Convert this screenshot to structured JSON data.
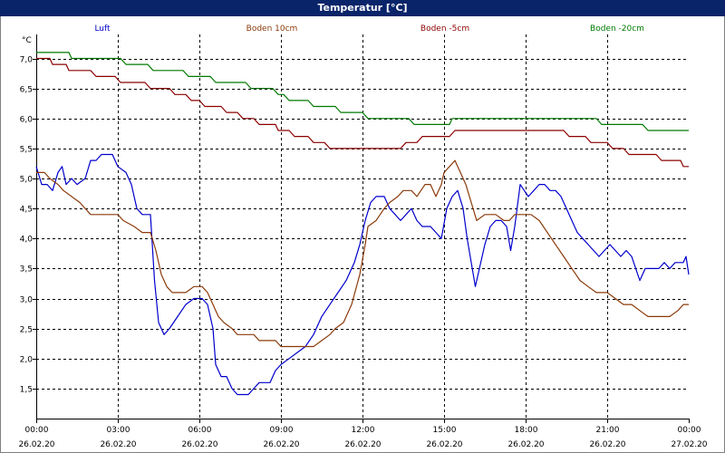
{
  "window": {
    "title": "Temperatur [°C]"
  },
  "chart_data": {
    "type": "line",
    "title": "Temperatur [°C]",
    "ylabel": "°C",
    "ylim": [
      1.0,
      7.4
    ],
    "xlim_hours": [
      0,
      24
    ],
    "grid": true,
    "legend_placement": "top",
    "yticks": [
      {
        "v": 1.5,
        "label": "1,5"
      },
      {
        "v": 2.0,
        "label": "2,0"
      },
      {
        "v": 2.5,
        "label": "2,5"
      },
      {
        "v": 3.0,
        "label": "3,0"
      },
      {
        "v": 3.5,
        "label": "3,5"
      },
      {
        "v": 4.0,
        "label": "4,0"
      },
      {
        "v": 4.5,
        "label": "4,5"
      },
      {
        "v": 5.0,
        "label": "5,0"
      },
      {
        "v": 5.5,
        "label": "5,5"
      },
      {
        "v": 6.0,
        "label": "6,0"
      },
      {
        "v": 6.5,
        "label": "6,5"
      },
      {
        "v": 7.0,
        "label": "7,0"
      }
    ],
    "xticks": [
      {
        "h": 0,
        "time": "00:00",
        "date": "26.02.20"
      },
      {
        "h": 3,
        "time": "03:00",
        "date": "26.02.20"
      },
      {
        "h": 6,
        "time": "06:00",
        "date": "26.02.20"
      },
      {
        "h": 9,
        "time": "09:00",
        "date": "26.02.20"
      },
      {
        "h": 12,
        "time": "12:00",
        "date": "26.02.20"
      },
      {
        "h": 15,
        "time": "15:00",
        "date": "26.02.20"
      },
      {
        "h": 18,
        "time": "18:00",
        "date": "26.02.20"
      },
      {
        "h": 21,
        "time": "21:00",
        "date": "26.02.20"
      },
      {
        "h": 24,
        "time": "00:00",
        "date": "27.02.20"
      }
    ],
    "series": [
      {
        "name": "Luft",
        "color": "#0000cc",
        "points": [
          [
            0.0,
            5.2
          ],
          [
            0.2,
            4.9
          ],
          [
            0.4,
            4.9
          ],
          [
            0.6,
            4.8
          ],
          [
            0.8,
            5.1
          ],
          [
            0.95,
            5.2
          ],
          [
            1.1,
            4.9
          ],
          [
            1.3,
            5.0
          ],
          [
            1.5,
            4.9
          ],
          [
            1.8,
            5.0
          ],
          [
            2.0,
            5.3
          ],
          [
            2.2,
            5.3
          ],
          [
            2.4,
            5.4
          ],
          [
            2.8,
            5.4
          ],
          [
            3.0,
            5.2
          ],
          [
            3.3,
            5.1
          ],
          [
            3.5,
            4.9
          ],
          [
            3.7,
            4.5
          ],
          [
            3.9,
            4.4
          ],
          [
            4.2,
            4.4
          ],
          [
            4.35,
            3.3
          ],
          [
            4.5,
            2.6
          ],
          [
            4.7,
            2.4
          ],
          [
            4.9,
            2.5
          ],
          [
            5.2,
            2.7
          ],
          [
            5.5,
            2.9
          ],
          [
            5.8,
            3.0
          ],
          [
            6.1,
            3.0
          ],
          [
            6.3,
            2.9
          ],
          [
            6.5,
            2.5
          ],
          [
            6.6,
            1.9
          ],
          [
            6.8,
            1.7
          ],
          [
            7.0,
            1.7
          ],
          [
            7.2,
            1.5
          ],
          [
            7.4,
            1.4
          ],
          [
            7.8,
            1.4
          ],
          [
            8.0,
            1.5
          ],
          [
            8.2,
            1.6
          ],
          [
            8.6,
            1.6
          ],
          [
            8.8,
            1.8
          ],
          [
            9.0,
            1.9
          ],
          [
            9.3,
            2.0
          ],
          [
            9.6,
            2.1
          ],
          [
            9.9,
            2.2
          ],
          [
            10.2,
            2.4
          ],
          [
            10.5,
            2.7
          ],
          [
            10.8,
            2.9
          ],
          [
            11.1,
            3.1
          ],
          [
            11.4,
            3.3
          ],
          [
            11.7,
            3.6
          ],
          [
            11.9,
            3.9
          ],
          [
            12.1,
            4.3
          ],
          [
            12.3,
            4.6
          ],
          [
            12.5,
            4.7
          ],
          [
            12.8,
            4.7
          ],
          [
            13.0,
            4.5
          ],
          [
            13.2,
            4.4
          ],
          [
            13.4,
            4.3
          ],
          [
            13.6,
            4.4
          ],
          [
            13.8,
            4.5
          ],
          [
            14.0,
            4.3
          ],
          [
            14.2,
            4.2
          ],
          [
            14.5,
            4.2
          ],
          [
            14.7,
            4.1
          ],
          [
            14.9,
            4.0
          ],
          [
            15.1,
            4.5
          ],
          [
            15.3,
            4.7
          ],
          [
            15.5,
            4.8
          ],
          [
            15.7,
            4.5
          ],
          [
            15.85,
            4.0
          ],
          [
            16.0,
            3.6
          ],
          [
            16.15,
            3.2
          ],
          [
            16.3,
            3.5
          ],
          [
            16.5,
            3.9
          ],
          [
            16.7,
            4.2
          ],
          [
            16.9,
            4.3
          ],
          [
            17.1,
            4.3
          ],
          [
            17.3,
            4.2
          ],
          [
            17.45,
            3.8
          ],
          [
            17.6,
            4.2
          ],
          [
            17.8,
            4.9
          ],
          [
            17.95,
            4.8
          ],
          [
            18.1,
            4.7
          ],
          [
            18.3,
            4.8
          ],
          [
            18.5,
            4.9
          ],
          [
            18.7,
            4.9
          ],
          [
            18.9,
            4.8
          ],
          [
            19.1,
            4.8
          ],
          [
            19.3,
            4.7
          ],
          [
            19.5,
            4.5
          ],
          [
            19.7,
            4.3
          ],
          [
            19.9,
            4.1
          ],
          [
            20.1,
            4.0
          ],
          [
            20.3,
            3.9
          ],
          [
            20.5,
            3.8
          ],
          [
            20.7,
            3.7
          ],
          [
            20.9,
            3.8
          ],
          [
            21.1,
            3.9
          ],
          [
            21.3,
            3.8
          ],
          [
            21.5,
            3.7
          ],
          [
            21.7,
            3.8
          ],
          [
            21.9,
            3.7
          ],
          [
            22.05,
            3.5
          ],
          [
            22.2,
            3.3
          ],
          [
            22.4,
            3.5
          ],
          [
            22.6,
            3.5
          ],
          [
            22.9,
            3.5
          ],
          [
            23.1,
            3.6
          ],
          [
            23.3,
            3.5
          ],
          [
            23.5,
            3.6
          ],
          [
            23.8,
            3.6
          ],
          [
            23.9,
            3.7
          ],
          [
            24.0,
            3.4
          ]
        ]
      },
      {
        "name": "Boden 10cm",
        "color": "#8b3a0a",
        "points": [
          [
            0.0,
            5.1
          ],
          [
            0.3,
            5.1
          ],
          [
            0.5,
            5.0
          ],
          [
            0.8,
            4.9
          ],
          [
            1.0,
            4.8
          ],
          [
            1.3,
            4.7
          ],
          [
            1.6,
            4.6
          ],
          [
            2.0,
            4.4
          ],
          [
            2.5,
            4.4
          ],
          [
            3.0,
            4.4
          ],
          [
            3.2,
            4.3
          ],
          [
            3.6,
            4.2
          ],
          [
            3.9,
            4.1
          ],
          [
            4.2,
            4.1
          ],
          [
            4.4,
            3.8
          ],
          [
            4.6,
            3.4
          ],
          [
            4.8,
            3.2
          ],
          [
            5.0,
            3.1
          ],
          [
            5.5,
            3.1
          ],
          [
            5.8,
            3.2
          ],
          [
            6.1,
            3.2
          ],
          [
            6.3,
            3.1
          ],
          [
            6.5,
            2.9
          ],
          [
            6.7,
            2.7
          ],
          [
            6.9,
            2.6
          ],
          [
            7.2,
            2.5
          ],
          [
            7.4,
            2.4
          ],
          [
            8.0,
            2.4
          ],
          [
            8.2,
            2.3
          ],
          [
            8.8,
            2.3
          ],
          [
            9.0,
            2.2
          ],
          [
            9.6,
            2.2
          ],
          [
            9.8,
            2.2
          ],
          [
            10.2,
            2.2
          ],
          [
            10.5,
            2.3
          ],
          [
            10.8,
            2.4
          ],
          [
            11.0,
            2.5
          ],
          [
            11.3,
            2.6
          ],
          [
            11.6,
            2.9
          ],
          [
            11.9,
            3.4
          ],
          [
            12.1,
            3.9
          ],
          [
            12.2,
            4.2
          ],
          [
            12.5,
            4.3
          ],
          [
            12.8,
            4.5
          ],
          [
            13.0,
            4.6
          ],
          [
            13.3,
            4.7
          ],
          [
            13.5,
            4.8
          ],
          [
            13.8,
            4.8
          ],
          [
            14.0,
            4.7
          ],
          [
            14.3,
            4.9
          ],
          [
            14.5,
            4.9
          ],
          [
            14.7,
            4.7
          ],
          [
            14.9,
            4.9
          ],
          [
            15.0,
            5.1
          ],
          [
            15.2,
            5.2
          ],
          [
            15.4,
            5.3
          ],
          [
            15.6,
            5.1
          ],
          [
            15.8,
            4.9
          ],
          [
            16.0,
            4.6
          ],
          [
            16.2,
            4.3
          ],
          [
            16.5,
            4.4
          ],
          [
            16.9,
            4.4
          ],
          [
            17.2,
            4.3
          ],
          [
            17.4,
            4.3
          ],
          [
            17.6,
            4.4
          ],
          [
            18.2,
            4.4
          ],
          [
            18.5,
            4.3
          ],
          [
            18.8,
            4.1
          ],
          [
            19.1,
            3.9
          ],
          [
            19.4,
            3.7
          ],
          [
            19.7,
            3.5
          ],
          [
            20.0,
            3.3
          ],
          [
            20.3,
            3.2
          ],
          [
            20.6,
            3.1
          ],
          [
            21.0,
            3.1
          ],
          [
            21.3,
            3.0
          ],
          [
            21.6,
            2.9
          ],
          [
            21.9,
            2.9
          ],
          [
            22.2,
            2.8
          ],
          [
            22.5,
            2.7
          ],
          [
            23.0,
            2.7
          ],
          [
            23.3,
            2.7
          ],
          [
            23.6,
            2.8
          ],
          [
            23.8,
            2.9
          ],
          [
            24.0,
            2.9
          ]
        ]
      },
      {
        "name": "Boden -5cm",
        "color": "#8b0000",
        "points": [
          [
            0.0,
            7.0
          ],
          [
            0.5,
            7.0
          ],
          [
            0.6,
            6.9
          ],
          [
            1.1,
            6.9
          ],
          [
            1.2,
            6.8
          ],
          [
            2.0,
            6.8
          ],
          [
            2.2,
            6.7
          ],
          [
            2.9,
            6.7
          ],
          [
            3.1,
            6.6
          ],
          [
            4.0,
            6.6
          ],
          [
            4.2,
            6.5
          ],
          [
            4.9,
            6.5
          ],
          [
            5.1,
            6.4
          ],
          [
            5.5,
            6.4
          ],
          [
            5.7,
            6.3
          ],
          [
            6.0,
            6.3
          ],
          [
            6.2,
            6.2
          ],
          [
            6.8,
            6.2
          ],
          [
            7.0,
            6.1
          ],
          [
            7.4,
            6.1
          ],
          [
            7.6,
            6.0
          ],
          [
            8.0,
            6.0
          ],
          [
            8.2,
            5.9
          ],
          [
            8.8,
            5.9
          ],
          [
            8.9,
            5.8
          ],
          [
            9.3,
            5.8
          ],
          [
            9.5,
            5.7
          ],
          [
            10.0,
            5.7
          ],
          [
            10.2,
            5.6
          ],
          [
            10.6,
            5.6
          ],
          [
            10.8,
            5.5
          ],
          [
            13.4,
            5.5
          ],
          [
            13.6,
            5.6
          ],
          [
            14.0,
            5.6
          ],
          [
            14.2,
            5.7
          ],
          [
            15.2,
            5.7
          ],
          [
            15.4,
            5.8
          ],
          [
            19.4,
            5.8
          ],
          [
            19.6,
            5.7
          ],
          [
            20.2,
            5.7
          ],
          [
            20.4,
            5.6
          ],
          [
            21.0,
            5.6
          ],
          [
            21.2,
            5.5
          ],
          [
            21.6,
            5.5
          ],
          [
            21.8,
            5.4
          ],
          [
            22.8,
            5.4
          ],
          [
            23.0,
            5.3
          ],
          [
            23.7,
            5.3
          ],
          [
            23.8,
            5.2
          ],
          [
            24.0,
            5.2
          ]
        ]
      },
      {
        "name": "Boden -20cm",
        "color": "#007a00",
        "points": [
          [
            0.0,
            7.1
          ],
          [
            1.2,
            7.1
          ],
          [
            1.3,
            7.0
          ],
          [
            3.1,
            7.0
          ],
          [
            3.3,
            6.9
          ],
          [
            4.1,
            6.9
          ],
          [
            4.3,
            6.8
          ],
          [
            5.4,
            6.8
          ],
          [
            5.6,
            6.7
          ],
          [
            6.4,
            6.7
          ],
          [
            6.6,
            6.6
          ],
          [
            7.7,
            6.6
          ],
          [
            7.9,
            6.5
          ],
          [
            8.7,
            6.5
          ],
          [
            8.9,
            6.4
          ],
          [
            9.1,
            6.4
          ],
          [
            9.3,
            6.3
          ],
          [
            10.0,
            6.3
          ],
          [
            10.2,
            6.2
          ],
          [
            11.0,
            6.2
          ],
          [
            11.2,
            6.1
          ],
          [
            12.0,
            6.1
          ],
          [
            12.2,
            6.0
          ],
          [
            13.7,
            6.0
          ],
          [
            13.9,
            5.9
          ],
          [
            15.2,
            5.9
          ],
          [
            15.3,
            6.0
          ],
          [
            20.6,
            6.0
          ],
          [
            20.8,
            5.9
          ],
          [
            22.3,
            5.9
          ],
          [
            22.5,
            5.8
          ],
          [
            24.0,
            5.8
          ]
        ]
      }
    ]
  }
}
